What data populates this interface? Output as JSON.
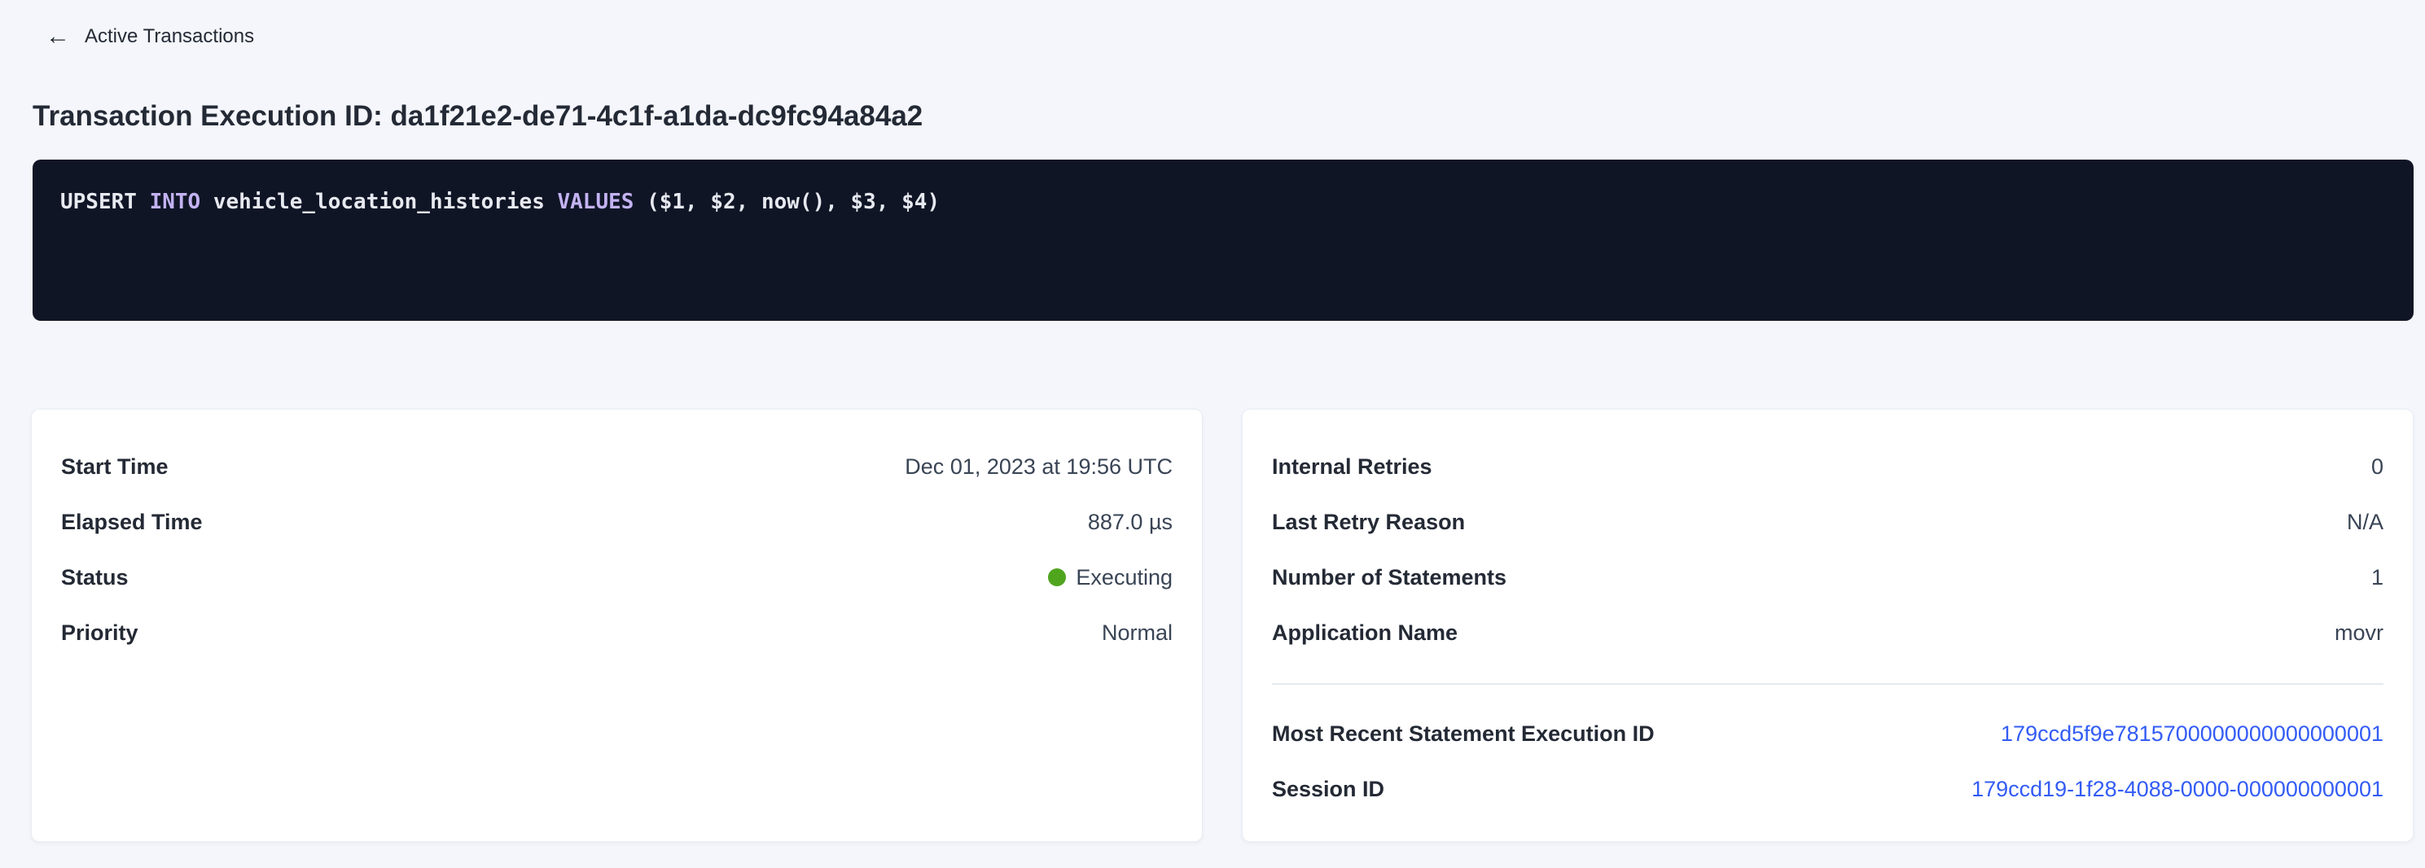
{
  "colors": {
    "page-bg": "#f4f6fb",
    "text-dark": "#242a35",
    "text-value": "#394455",
    "link-blue": "#335cf5",
    "status-green": "#4fa51d",
    "code-bg": "#101526",
    "code-text": "#e7e9f0",
    "code-keyword": "#c3b2f2"
  },
  "nav": {
    "back_icon": "arrow-left",
    "back_label": "Active Transactions"
  },
  "header": {
    "title": "Transaction Execution ID: da1f21e2-de71-4c1f-a1da-dc9fc94a84a2"
  },
  "sql": {
    "tokens": [
      {
        "text": "UPSERT ",
        "type": "plain"
      },
      {
        "text": "INTO",
        "type": "keyword"
      },
      {
        "text": " vehicle_location_histories ",
        "type": "plain"
      },
      {
        "text": "VALUES",
        "type": "keyword"
      },
      {
        "text": " ($1, $2, now(), $3, $4)",
        "type": "plain"
      }
    ]
  },
  "overview": {
    "rows": [
      {
        "label": "Start Time",
        "value": "Dec 01, 2023 at 19:56 UTC"
      },
      {
        "label": "Elapsed Time",
        "value": "887.0 µs"
      },
      {
        "label": "Status",
        "value": "Executing"
      },
      {
        "label": "Priority",
        "value": "Normal"
      }
    ],
    "status_dot_color": "#4fa51d"
  },
  "details": {
    "rows": [
      {
        "label": "Internal Retries",
        "value": "0"
      },
      {
        "label": "Last Retry Reason",
        "value": "N/A"
      },
      {
        "label": "Number of Statements",
        "value": "1"
      },
      {
        "label": "Application Name",
        "value": "movr"
      }
    ],
    "links": [
      {
        "label": "Most Recent Statement Execution ID",
        "value": "179ccd5f9e7815700000000000000001"
      },
      {
        "label": "Session ID",
        "value": "179ccd19-1f28-4088-0000-000000000001"
      }
    ]
  }
}
